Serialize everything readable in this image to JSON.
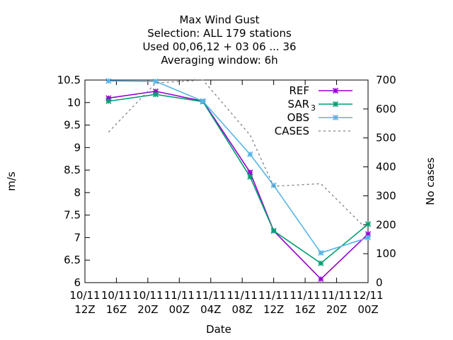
{
  "title_lines": [
    "Max Wind Gust",
    "Selection: ALL    179 stations",
    "Used  00,06,12  + 03 06 ... 36",
    "Averaging window:  6h"
  ],
  "chart_data": {
    "type": "line",
    "xlabel": "Date",
    "ylabel": "m/s",
    "y2label": "No cases",
    "ylim": [
      6,
      10.5
    ],
    "y2lim": [
      0,
      700
    ],
    "yticks": [
      "6",
      "6.5",
      "7",
      "7.5",
      "8",
      "8.5",
      "9",
      "9.5",
      "10",
      "10.5"
    ],
    "y2ticks": [
      "0",
      "100",
      "200",
      "300",
      "400",
      "500",
      "600",
      "700"
    ],
    "xticks": [
      {
        "top": "10/11",
        "bottom": "12Z"
      },
      {
        "top": "10/11",
        "bottom": "16Z"
      },
      {
        "top": "10/11",
        "bottom": "20Z"
      },
      {
        "top": "11/11",
        "bottom": "00Z"
      },
      {
        "top": "11/11",
        "bottom": "04Z"
      },
      {
        "top": "11/11",
        "bottom": "08Z"
      },
      {
        "top": "11/11",
        "bottom": "12Z"
      },
      {
        "top": "11/11",
        "bottom": "16Z"
      },
      {
        "top": "11/11",
        "bottom": "20Z"
      },
      {
        "top": "12/11",
        "bottom": "00Z"
      }
    ],
    "x": [
      "10/11 15Z",
      "10/11 21Z",
      "11/11 03Z",
      "11/11 09Z",
      "11/11 12Z",
      "11/11 18Z",
      "12/11 00Z"
    ],
    "x_hours": [
      15,
      21,
      27,
      33,
      36,
      42,
      48
    ],
    "x_range_hours": [
      12,
      48
    ],
    "legend_position": "top-right",
    "series": [
      {
        "name": "REF",
        "color": "#9400d3",
        "axis": "y1",
        "marker": "star",
        "values": [
          10.1,
          10.25,
          10.03,
          8.45,
          7.15,
          6.08,
          7.08
        ]
      },
      {
        "name": "SAR",
        "name_sub": "3",
        "color": "#009e73",
        "axis": "y1",
        "marker": "star",
        "values": [
          10.03,
          10.18,
          10.02,
          8.35,
          7.15,
          6.43,
          7.3
        ]
      },
      {
        "name": "OBS",
        "color": "#56b4e9",
        "axis": "y1",
        "marker": "star",
        "values": [
          10.48,
          10.47,
          10.03,
          8.85,
          8.16,
          6.66,
          7.0
        ]
      },
      {
        "name": "CASES",
        "color": "#808080",
        "axis": "y2",
        "dashed": true,
        "values": [
          520,
          690,
          700,
          510,
          333,
          342,
          180
        ]
      }
    ]
  }
}
